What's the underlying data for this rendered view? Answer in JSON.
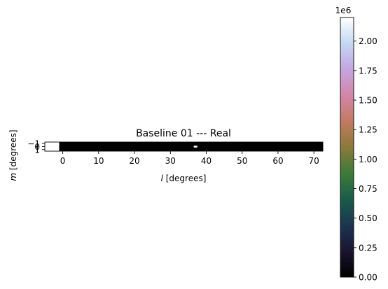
{
  "chart_data": {
    "type": "heatmap",
    "title": "Baseline 01 --- Real",
    "xlabel": "l [degrees]",
    "xlabel_var": "l",
    "xlabel_unit": " [degrees]",
    "ylabel": "m [degrees]",
    "ylabel_var": "m",
    "ylabel_unit": " [degrees]",
    "xlim": [
      -5,
      72.5
    ],
    "ylim": [
      1.5,
      -1.5
    ],
    "x_ticks": [
      0,
      10,
      20,
      30,
      40,
      50,
      60,
      70
    ],
    "x_tick_labels": [
      "0",
      "10",
      "20",
      "30",
      "40",
      "50",
      "60",
      "70"
    ],
    "y_ticks": [
      -1,
      0,
      1
    ],
    "y_tick_labels": [
      "−1",
      "0",
      "1"
    ],
    "image": {
      "background_value": 0,
      "saturated_regions": [
        {
          "x": [
            -5,
            -1
          ],
          "y": [
            -1.5,
            1.5
          ],
          "value": 2200000
        },
        {
          "x": [
            36.5,
            37.5
          ],
          "y": [
            -0.3,
            0.3
          ],
          "value": 2200000
        }
      ]
    },
    "colorbar": {
      "colormap": "cubehelix",
      "range": [
        0,
        2200000
      ],
      "offset_label": "1e6",
      "ticks": [
        0,
        250000,
        500000,
        750000,
        1000000,
        1250000,
        1500000,
        1750000,
        2000000
      ],
      "tick_labels": [
        "0.00",
        "0.25",
        "0.50",
        "0.75",
        "1.00",
        "1.25",
        "1.50",
        "1.75",
        "2.00"
      ]
    }
  }
}
